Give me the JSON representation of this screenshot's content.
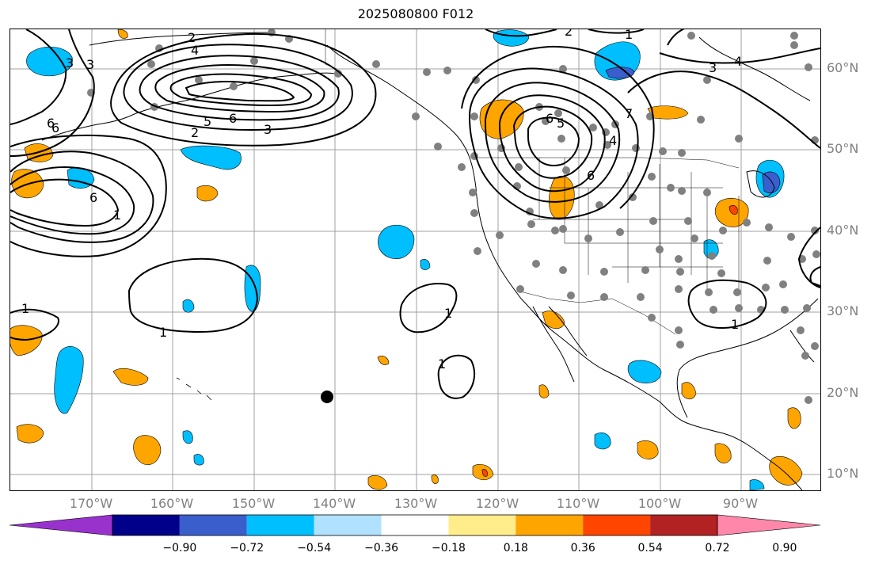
{
  "title": "2025080800 F012",
  "lat_labels": [
    "60°N",
    "50°N",
    "40°N",
    "30°N",
    "20°N",
    "10°N"
  ],
  "lon_labels": [
    "170°W",
    "160°W",
    "150°W",
    "140°W",
    "130°W",
    "120°W",
    "110°W",
    "100°W",
    "90°W"
  ],
  "colorbar": {
    "tick_labels": [
      "−0.90",
      "−0.72",
      "−0.54",
      "−0.36",
      "−0.18",
      "0.18",
      "0.36",
      "0.54",
      "0.72",
      "0.90"
    ],
    "colors": [
      "#9932cc",
      "#00008b",
      "#3a5fcd",
      "#00bfff",
      "#b0e2ff",
      "#ffffff",
      "#ffec8b",
      "#ffa500",
      "#ff4500",
      "#b22222",
      "#ff88aa"
    ]
  },
  "contour_labels": [
    "2",
    "4",
    "3",
    "3",
    "6",
    "5",
    "6",
    "3",
    "2",
    "6",
    "6",
    "1",
    "1",
    "1",
    "1",
    "1",
    "2",
    "1",
    "4",
    "3",
    "6",
    "5",
    "4",
    "6",
    "7",
    "1"
  ],
  "colors": {
    "axis_text": "#808080",
    "grid": "#a0a0a0",
    "contour": "#000000",
    "station": "#808080"
  }
}
